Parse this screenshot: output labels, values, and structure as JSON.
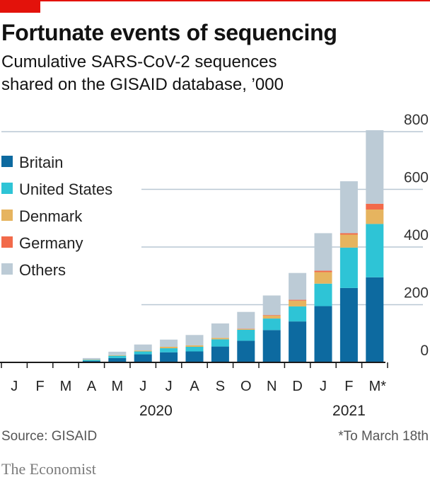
{
  "header": {
    "title": "Fortunate events of sequencing",
    "subtitle_line1": "Cumulative SARS-CoV-2 sequences",
    "subtitle_line2": "shared on the GISAID database, ’000"
  },
  "footer": {
    "source": "Source: GISAID",
    "footnote": "*To March 18th",
    "brand": "The Economist"
  },
  "colors": {
    "Britain": "#0d6aa0",
    "United States": "#2ec4d6",
    "Denmark": "#e6b45f",
    "Germany": "#f26a4a",
    "Others": "#bccbd6",
    "grid": "#b9c7d3",
    "axis": "#1a1a1a",
    "brand_red": "#e3120b"
  },
  "chart_data": {
    "type": "bar",
    "stacked": true,
    "categories": [
      "J",
      "F",
      "M",
      "A",
      "M",
      "J",
      "J",
      "A",
      "S",
      "O",
      "N",
      "D",
      "J",
      "F",
      "M*"
    ],
    "year_labels": [
      {
        "label": "2020",
        "under_category_index": 5.5
      },
      {
        "label": "2021",
        "under_category_index": 13
      }
    ],
    "ylim": [
      0,
      800
    ],
    "yticks": [
      0,
      200,
      400,
      600,
      800
    ],
    "grid": true,
    "legend_position": "top-left",
    "series": [
      {
        "name": "Britain",
        "values": [
          0,
          0,
          0,
          5,
          15,
          28,
          35,
          38,
          55,
          75,
          112,
          142,
          195,
          258,
          295
        ]
      },
      {
        "name": "United States",
        "values": [
          0,
          0,
          0,
          4,
          8,
          10,
          14,
          16,
          25,
          38,
          40,
          52,
          78,
          140,
          185
        ]
      },
      {
        "name": "Denmark",
        "values": [
          0,
          0,
          0,
          1,
          2,
          3,
          5,
          5,
          5,
          3,
          10,
          20,
          40,
          45,
          50
        ]
      },
      {
        "name": "Germany",
        "values": [
          0,
          0,
          0,
          0,
          0,
          0,
          0,
          0,
          0,
          1,
          2,
          3,
          5,
          5,
          20
        ]
      },
      {
        "name": "Others",
        "values": [
          0,
          0,
          0,
          5,
          12,
          21,
          25,
          36,
          50,
          58,
          68,
          93,
          130,
          180,
          255
        ]
      }
    ]
  }
}
